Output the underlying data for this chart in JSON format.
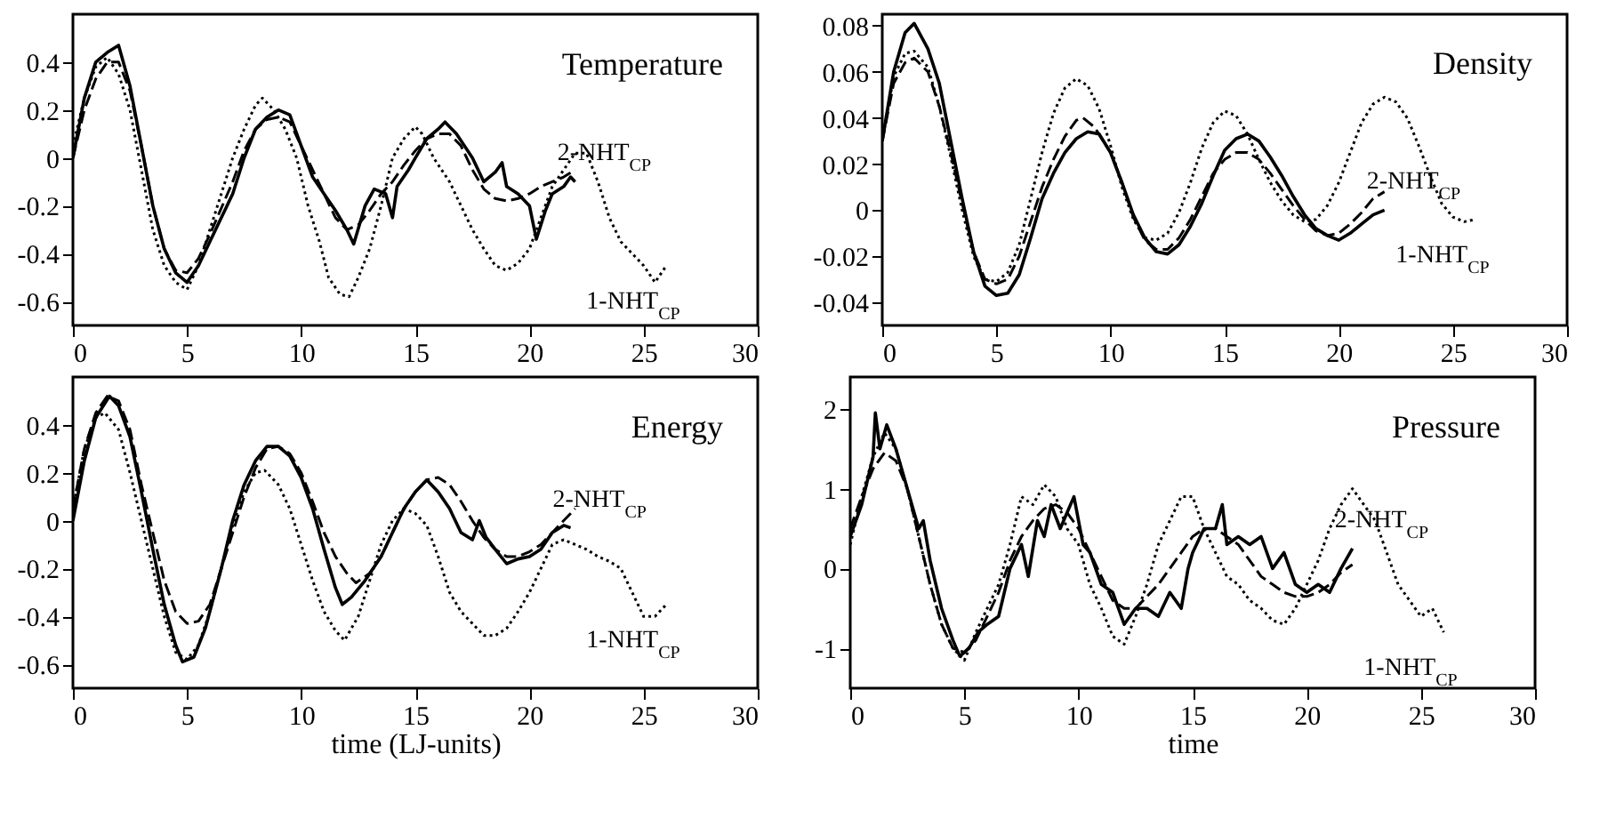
{
  "chart_data": [
    {
      "type": "line",
      "title": "Temperature",
      "xlim": [
        0,
        30
      ],
      "xticks": [
        0,
        5,
        10,
        15,
        20,
        25,
        30
      ],
      "ylim": [
        -0.7,
        0.6
      ],
      "yticks": [
        -0.6,
        -0.4,
        -0.2,
        0,
        0.2,
        0.4
      ],
      "series": [
        {
          "name": "2-NHT$_{CP}$",
          "color": "#000000",
          "line_style": "solid",
          "x": [
            0,
            0.5,
            1,
            1.5,
            2,
            2.5,
            3,
            3.5,
            4,
            4.5,
            5,
            5.5,
            6,
            7,
            7.5,
            8,
            8.5,
            9,
            9.5,
            10,
            10.5,
            11,
            11.5,
            12,
            12.3,
            12.8,
            13.2,
            13.7,
            14,
            14.2,
            14.7,
            15,
            15.5,
            16,
            16.3,
            16.8,
            17.5,
            18,
            18.5,
            18.8,
            19,
            19.5,
            20,
            20.3,
            20.7,
            21,
            21.5,
            21.8,
            22
          ],
          "values": [
            0,
            0.25,
            0.4,
            0.44,
            0.47,
            0.3,
            0.05,
            -0.2,
            -0.38,
            -0.48,
            -0.52,
            -0.45,
            -0.35,
            -0.15,
            0,
            0.12,
            0.17,
            0.2,
            0.18,
            0.05,
            -0.08,
            -0.15,
            -0.22,
            -0.3,
            -0.36,
            -0.2,
            -0.13,
            -0.15,
            -0.25,
            -0.12,
            -0.05,
            0,
            0.08,
            0.12,
            0.15,
            0.1,
            0,
            -0.1,
            -0.06,
            -0.02,
            -0.12,
            -0.15,
            -0.2,
            -0.34,
            -0.22,
            -0.15,
            -0.12,
            -0.08,
            -0.1
          ]
        },
        {
          "color": "#000000",
          "line_style": "dashed",
          "x": [
            0,
            0.5,
            1,
            1.5,
            2,
            2.5,
            3,
            3.5,
            4,
            4.5,
            5,
            5.5,
            6,
            7,
            7.5,
            8,
            8.5,
            9,
            9.5,
            10,
            10.5,
            11,
            11.5,
            12,
            12.5,
            13,
            13.5,
            14,
            14.5,
            15,
            15.5,
            16,
            16.5,
            17,
            17.5,
            18,
            18.5,
            19,
            19.5,
            20,
            20.5,
            21,
            21.5,
            22
          ],
          "values": [
            0,
            0.2,
            0.33,
            0.4,
            0.4,
            0.28,
            0.05,
            -0.2,
            -0.38,
            -0.47,
            -0.48,
            -0.42,
            -0.32,
            -0.1,
            0.03,
            0.12,
            0.16,
            0.17,
            0.15,
            0.05,
            -0.05,
            -0.15,
            -0.25,
            -0.3,
            -0.28,
            -0.22,
            -0.15,
            -0.1,
            -0.03,
            0.03,
            0.08,
            0.1,
            0.1,
            0.05,
            -0.05,
            -0.13,
            -0.17,
            -0.18,
            -0.17,
            -0.15,
            -0.12,
            -0.1,
            -0.08,
            -0.05
          ]
        },
        {
          "name": "1-NHT$_{CP}$",
          "color": "#000000",
          "line_style": "dotted",
          "x": [
            0,
            0.5,
            1,
            1.5,
            2,
            2.5,
            3,
            3.5,
            4,
            4.5,
            5,
            5.5,
            6,
            6.5,
            7,
            7.5,
            8,
            8.3,
            8.8,
            9.3,
            9.8,
            10.3,
            10.8,
            11.2,
            11.7,
            12.1,
            12.5,
            13,
            13.5,
            14,
            14.5,
            15,
            15.3,
            15.8,
            16.5,
            17,
            17.5,
            18,
            18.5,
            19,
            19.5,
            20,
            20.5,
            21,
            21.5,
            22,
            22.5,
            23,
            23.5,
            24,
            24.5,
            25,
            25.5,
            26
          ],
          "values": [
            0.05,
            0.25,
            0.38,
            0.42,
            0.35,
            0.2,
            -0.05,
            -0.3,
            -0.45,
            -0.52,
            -0.55,
            -0.45,
            -0.3,
            -0.15,
            0,
            0.12,
            0.22,
            0.25,
            0.2,
            0.12,
            0,
            -0.2,
            -0.35,
            -0.5,
            -0.57,
            -0.58,
            -0.5,
            -0.38,
            -0.2,
            0,
            0.08,
            0.13,
            0.1,
            0,
            -0.1,
            -0.2,
            -0.3,
            -0.38,
            -0.45,
            -0.47,
            -0.44,
            -0.38,
            -0.25,
            -0.12,
            -0.05,
            0.02,
            0.02,
            -0.1,
            -0.25,
            -0.35,
            -0.4,
            -0.45,
            -0.52,
            -0.45
          ]
        }
      ]
    },
    {
      "type": "line",
      "title": "Density",
      "xlim": [
        0,
        30
      ],
      "xticks": [
        0,
        5,
        10,
        15,
        20,
        25,
        30
      ],
      "ylim": [
        -0.05,
        0.085
      ],
      "yticks": [
        -0.04,
        -0.02,
        0,
        0.02,
        0.04,
        0.06,
        0.08
      ],
      "series": [
        {
          "name": "2-NHT$_{CP}$",
          "color": "#000000",
          "line_style": "solid",
          "x": [
            0,
            0.5,
            1,
            1.4,
            2,
            2.5,
            3,
            3.5,
            4,
            4.5,
            5,
            5.5,
            6,
            6.5,
            7,
            7.5,
            8,
            8.5,
            9,
            9.5,
            10,
            10.5,
            11,
            11.5,
            12,
            12.5,
            13,
            13.5,
            14,
            14.5,
            15,
            15.5,
            16,
            16.5,
            17,
            17.5,
            18,
            18.5,
            19,
            19.5,
            20,
            20.5,
            21,
            21.5,
            22
          ],
          "values": [
            0.03,
            0.06,
            0.077,
            0.081,
            0.07,
            0.055,
            0.03,
            0.005,
            -0.018,
            -0.033,
            -0.037,
            -0.036,
            -0.028,
            -0.012,
            0.005,
            0.016,
            0.025,
            0.031,
            0.034,
            0.033,
            0.025,
            0.012,
            -0.002,
            -0.012,
            -0.018,
            -0.019,
            -0.015,
            -0.007,
            0.003,
            0.015,
            0.026,
            0.031,
            0.033,
            0.03,
            0.023,
            0.015,
            0.006,
            -0.002,
            -0.008,
            -0.011,
            -0.013,
            -0.01,
            -0.006,
            -0.002,
            0
          ]
        },
        {
          "color": "#000000",
          "line_style": "dashed",
          "x": [
            0,
            0.5,
            1,
            1.4,
            2,
            2.5,
            3,
            3.5,
            4,
            4.5,
            5,
            5.5,
            6,
            6.5,
            7,
            7.5,
            8,
            8.5,
            8.8,
            9.3,
            10,
            10.5,
            11,
            11.5,
            12,
            12.5,
            13,
            13.5,
            14,
            14.5,
            15,
            15.5,
            16,
            16.5,
            17,
            17.5,
            18,
            18.5,
            19,
            19.5,
            20,
            20.5,
            21,
            21.5,
            22
          ],
          "values": [
            0.03,
            0.055,
            0.064,
            0.066,
            0.06,
            0.045,
            0.025,
            0.003,
            -0.018,
            -0.03,
            -0.032,
            -0.03,
            -0.02,
            -0.005,
            0.01,
            0.022,
            0.032,
            0.039,
            0.04,
            0.036,
            0.025,
            0.012,
            -0.003,
            -0.013,
            -0.017,
            -0.017,
            -0.012,
            -0.004,
            0.006,
            0.016,
            0.022,
            0.025,
            0.025,
            0.022,
            0.016,
            0.009,
            0.002,
            -0.004,
            -0.009,
            -0.011,
            -0.01,
            -0.006,
            -0.001,
            0.005,
            0.008
          ]
        },
        {
          "name": "1-NHT$_{CP}$",
          "color": "#000000",
          "line_style": "dotted",
          "x": [
            0,
            0.5,
            1,
            1.4,
            2,
            2.5,
            3,
            3.5,
            4,
            4.5,
            5,
            5.5,
            6,
            6.5,
            7,
            7.5,
            8,
            8.5,
            9,
            9.5,
            10,
            10.5,
            11,
            11.5,
            12,
            12.5,
            13,
            13.5,
            14,
            14.5,
            15,
            15.5,
            16,
            16.5,
            17,
            17.5,
            18,
            18.5,
            19,
            19.5,
            20,
            20.5,
            21,
            21.5,
            22,
            22.5,
            23,
            23.5,
            24,
            24.5,
            25,
            25.5,
            26
          ],
          "values": [
            0.03,
            0.058,
            0.068,
            0.069,
            0.062,
            0.045,
            0.023,
            0,
            -0.02,
            -0.03,
            -0.031,
            -0.027,
            -0.015,
            0.005,
            0.025,
            0.042,
            0.053,
            0.057,
            0.054,
            0.044,
            0.028,
            0.01,
            -0.004,
            -0.012,
            -0.013,
            -0.01,
            -0.001,
            0.012,
            0.027,
            0.038,
            0.043,
            0.041,
            0.033,
            0.022,
            0.012,
            0.004,
            -0.002,
            -0.005,
            -0.004,
            0.002,
            0.012,
            0.025,
            0.038,
            0.046,
            0.049,
            0.047,
            0.04,
            0.028,
            0.015,
            0.003,
            -0.003,
            -0.005,
            -0.004
          ]
        }
      ]
    },
    {
      "type": "line",
      "title": "Energy",
      "xlabel": "time (LJ-units)",
      "xlim": [
        0,
        30
      ],
      "xticks": [
        0,
        5,
        10,
        15,
        20,
        25,
        30
      ],
      "ylim": [
        -0.7,
        0.6
      ],
      "yticks": [
        -0.6,
        -0.4,
        -0.2,
        0,
        0.2,
        0.4
      ],
      "series": [
        {
          "name": "2-NHT$_{CP}$",
          "color": "#000000",
          "line_style": "solid",
          "x": [
            0,
            0.5,
            1,
            1.6,
            2,
            2.5,
            3,
            3.5,
            4,
            4.5,
            4.8,
            5.3,
            5.8,
            6.5,
            7,
            7.5,
            8,
            8.5,
            9,
            9.5,
            10,
            10.5,
            11,
            11.5,
            11.8,
            12.2,
            12.8,
            13.5,
            14,
            14.5,
            15,
            15.5,
            16,
            16.5,
            17,
            17.5,
            17.8,
            18.1,
            18.5,
            19,
            19.5,
            20,
            20.5,
            21,
            21.5,
            21.8
          ],
          "values": [
            0,
            0.25,
            0.43,
            0.52,
            0.48,
            0.35,
            0.12,
            -0.12,
            -0.35,
            -0.52,
            -0.59,
            -0.57,
            -0.45,
            -0.2,
            0,
            0.15,
            0.25,
            0.31,
            0.31,
            0.27,
            0.18,
            0.05,
            -0.12,
            -0.28,
            -0.35,
            -0.32,
            -0.25,
            -0.15,
            -0.05,
            0.05,
            0.12,
            0.17,
            0.12,
            0.05,
            -0.05,
            -0.08,
            0,
            -0.07,
            -0.12,
            -0.18,
            -0.16,
            -0.15,
            -0.12,
            -0.05,
            -0.02,
            -0.03
          ]
        },
        {
          "color": "#000000",
          "line_style": "dashed",
          "x": [
            0,
            0.5,
            1,
            1.5,
            2,
            2.5,
            3,
            3.5,
            4,
            4.5,
            5,
            5.5,
            6,
            6.5,
            7,
            7.5,
            8,
            8.5,
            9,
            9.5,
            10,
            10.5,
            11,
            11.5,
            12,
            12.4,
            13,
            13.5,
            14,
            14.5,
            15,
            15.5,
            16,
            16.5,
            17,
            17.5,
            18,
            18.5,
            19,
            19.5,
            20,
            20.5,
            21,
            21.5,
            22
          ],
          "values": [
            0.05,
            0.3,
            0.45,
            0.52,
            0.5,
            0.38,
            0.15,
            -0.05,
            -0.25,
            -0.38,
            -0.43,
            -0.42,
            -0.35,
            -0.2,
            -0.05,
            0.1,
            0.22,
            0.3,
            0.31,
            0.28,
            0.2,
            0.08,
            -0.05,
            -0.15,
            -0.22,
            -0.26,
            -0.22,
            -0.15,
            -0.05,
            0.05,
            0.12,
            0.17,
            0.18,
            0.15,
            0.08,
            0,
            -0.07,
            -0.12,
            -0.15,
            -0.15,
            -0.13,
            -0.1,
            -0.05,
            0,
            0.05
          ]
        },
        {
          "name": "1-NHT$_{CP}$",
          "color": "#000000",
          "line_style": "dotted",
          "x": [
            0,
            0.5,
            1,
            1.4,
            2,
            2.5,
            3,
            3.5,
            4,
            4.5,
            5,
            5.5,
            6,
            6.5,
            7,
            7.5,
            8,
            8.4,
            9,
            9.5,
            10,
            10.5,
            11,
            11.5,
            11.9,
            12.5,
            13,
            13.5,
            14,
            14.5,
            15,
            15.5,
            16,
            16.5,
            17,
            17.5,
            18,
            18.5,
            19,
            19.5,
            20,
            20.5,
            21,
            21.5,
            22,
            22.5,
            23,
            23.5,
            24,
            24.5,
            25,
            25.5,
            26
          ],
          "values": [
            0.05,
            0.3,
            0.43,
            0.45,
            0.38,
            0.2,
            0,
            -0.2,
            -0.4,
            -0.55,
            -0.58,
            -0.52,
            -0.38,
            -0.2,
            -0.02,
            0.12,
            0.2,
            0.21,
            0.15,
            0.05,
            -0.1,
            -0.25,
            -0.38,
            -0.46,
            -0.5,
            -0.4,
            -0.25,
            -0.1,
            0,
            0.05,
            0.03,
            -0.02,
            -0.15,
            -0.3,
            -0.38,
            -0.43,
            -0.48,
            -0.48,
            -0.45,
            -0.38,
            -0.3,
            -0.2,
            -0.1,
            -0.08,
            -0.1,
            -0.12,
            -0.15,
            -0.17,
            -0.2,
            -0.3,
            -0.4,
            -0.4,
            -0.35
          ]
        }
      ]
    },
    {
      "type": "line",
      "title": "Pressure",
      "xlabel": "time",
      "xlim": [
        0,
        30
      ],
      "xticks": [
        0,
        5,
        10,
        15,
        20,
        25,
        30
      ],
      "ylim": [
        -1.5,
        2.4
      ],
      "yticks": [
        -1,
        0,
        1,
        2
      ],
      "series": [
        {
          "name": "2-NHT$_{CP}$",
          "color": "#000000",
          "line_style": "solid",
          "x": [
            0,
            0.5,
            1,
            1.1,
            1.3,
            1.6,
            2,
            2.5,
            3,
            3.2,
            3.5,
            4,
            4.5,
            4.8,
            5.2,
            5.6,
            6,
            6.5,
            7,
            7.5,
            7.8,
            8.2,
            8.5,
            8.8,
            9.2,
            9.5,
            9.8,
            10.2,
            10.5,
            11,
            11.5,
            12,
            12.5,
            13,
            13.5,
            14,
            14.5,
            14.8,
            15,
            15.5,
            16,
            16.3,
            16.5,
            17,
            17.5,
            18,
            18.5,
            19,
            19.5,
            20,
            20.5,
            21,
            21.5,
            22
          ],
          "values": [
            0.4,
            0.8,
            1.4,
            1.95,
            1.5,
            1.8,
            1.5,
            1,
            0.5,
            0.6,
            0.1,
            -0.5,
            -0.9,
            -1.1,
            -1,
            -0.8,
            -0.7,
            -0.6,
            0,
            0.3,
            -0.1,
            0.6,
            0.4,
            0.8,
            0.5,
            0.7,
            0.9,
            0.3,
            0.2,
            -0.2,
            -0.3,
            -0.7,
            -0.5,
            -0.5,
            -0.6,
            -0.3,
            -0.5,
            0,
            0.2,
            0.5,
            0.5,
            0.8,
            0.3,
            0.4,
            0.3,
            0.4,
            0,
            0.2,
            -0.2,
            -0.3,
            -0.2,
            -0.3,
            0,
            0.25
          ]
        },
        {
          "color": "#000000",
          "line_style": "dashed",
          "x": [
            0,
            0.5,
            1,
            1.5,
            2,
            2.5,
            3,
            3.5,
            4,
            4.5,
            5,
            5.5,
            6,
            6.5,
            7,
            7.5,
            8,
            8.5,
            9,
            9.5,
            10,
            10.5,
            11,
            11.5,
            12,
            12.5,
            13,
            13.5,
            14,
            14.5,
            15,
            15.5,
            16,
            16.5,
            17,
            17.5,
            18,
            18.5,
            19,
            19.5,
            20,
            20.5,
            21,
            21.5,
            22
          ],
          "values": [
            0.5,
            0.9,
            1.25,
            1.45,
            1.35,
            1,
            0.4,
            -0.2,
            -0.7,
            -1,
            -1.05,
            -0.9,
            -0.6,
            -0.3,
            0.1,
            0.4,
            0.6,
            0.75,
            0.8,
            0.7,
            0.5,
            0.2,
            -0.1,
            -0.4,
            -0.5,
            -0.5,
            -0.35,
            -0.2,
            0,
            0.2,
            0.4,
            0.5,
            0.5,
            0.4,
            0.3,
            0.1,
            -0.1,
            -0.2,
            -0.3,
            -0.35,
            -0.35,
            -0.3,
            -0.2,
            -0.05,
            0.05
          ]
        },
        {
          "name": "1-NHT$_{CP}$",
          "color": "#000000",
          "line_style": "dotted",
          "x": [
            0,
            0.5,
            1,
            1.5,
            2,
            2.5,
            3,
            3.5,
            4,
            4.5,
            5,
            5.5,
            6,
            6.5,
            7,
            7.5,
            8,
            8.5,
            9,
            9.5,
            10,
            10.5,
            11,
            11.5,
            12,
            12.5,
            13,
            13.5,
            14,
            14.5,
            15,
            15.5,
            16,
            16.5,
            17,
            17.5,
            18,
            18.5,
            19,
            19.5,
            20,
            20.5,
            21,
            21.5,
            22,
            22.5,
            23,
            23.5,
            24,
            24.5,
            25,
            25.5,
            26
          ],
          "values": [
            0.3,
            0.9,
            1.4,
            1.7,
            1.5,
            1,
            0.4,
            -0.2,
            -0.7,
            -1,
            -1.15,
            -0.8,
            -0.5,
            -0.2,
            0.3,
            0.9,
            0.8,
            1.05,
            0.9,
            0.5,
            0.3,
            -0.2,
            -0.5,
            -0.85,
            -0.95,
            -0.6,
            -0.2,
            0.3,
            0.6,
            0.9,
            0.9,
            0.5,
            0.2,
            -0.1,
            -0.2,
            -0.4,
            -0.5,
            -0.65,
            -0.7,
            -0.5,
            -0.2,
            0.1,
            0.5,
            0.8,
            1,
            0.8,
            0.6,
            0.2,
            -0.2,
            -0.4,
            -0.6,
            -0.5,
            -0.8
          ]
        }
      ]
    }
  ]
}
